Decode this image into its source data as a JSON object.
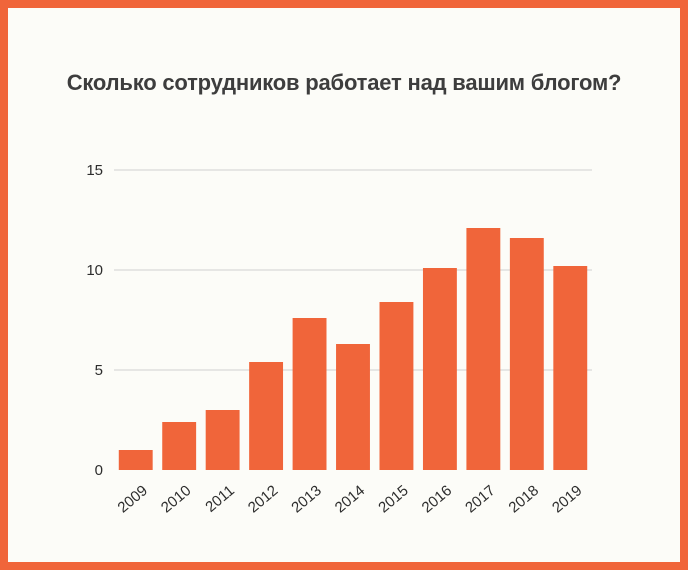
{
  "chart_data": {
    "type": "bar",
    "title": "Сколько сотрудников работает над вашим блогом?",
    "categories": [
      "2009",
      "2010",
      "2011",
      "2012",
      "2013",
      "2014",
      "2015",
      "2016",
      "2017",
      "2018",
      "2019"
    ],
    "values": [
      1.0,
      2.4,
      3.0,
      5.4,
      7.6,
      6.3,
      8.4,
      10.1,
      12.1,
      11.6,
      10.2
    ],
    "xlabel": "",
    "ylabel": "",
    "ylim": [
      0,
      15
    ],
    "yticks": [
      "0",
      "5",
      "10",
      "15"
    ],
    "grid": true,
    "bar_color": "#f0653a",
    "grid_color": "#cfcfcf",
    "background_color": "#fcfcf8",
    "frame_color": "#f0653a"
  }
}
